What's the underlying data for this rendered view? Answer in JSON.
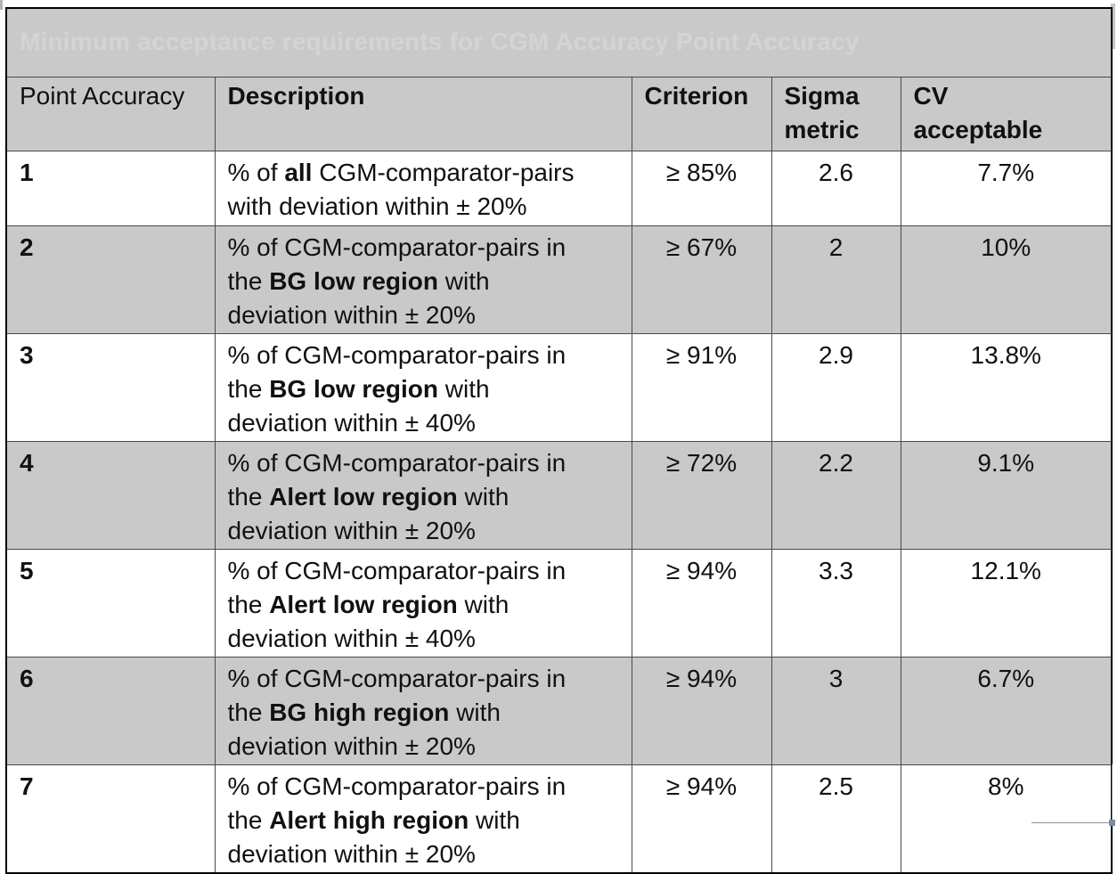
{
  "title": "Minimum acceptance requirements for CGM Accuracy Point Accuracy",
  "table": {
    "columns": [
      {
        "label": "Point Accuracy"
      },
      {
        "label": "Description"
      },
      {
        "label": "Criterion"
      },
      {
        "label": "Sigma\nmetric"
      },
      {
        "label": "CV\nacceptable"
      }
    ],
    "rows": [
      {
        "point": "1",
        "description": [
          {
            "text": "% of ",
            "bold": false
          },
          {
            "text": "all",
            "bold": true
          },
          {
            "text": " CGM-comparator-pairs\nwith deviation within ± 20%",
            "bold": false
          }
        ],
        "criterion": "≥ 85%",
        "sigma": "2.6",
        "cv": "7.7%"
      },
      {
        "point": "2",
        "description": [
          {
            "text": "% of CGM-comparator-pairs in\nthe ",
            "bold": false
          },
          {
            "text": "BG low region",
            "bold": true
          },
          {
            "text": " with\ndeviation within ± 20%",
            "bold": false
          }
        ],
        "criterion": "≥ 67%",
        "sigma": "2",
        "cv": "10%"
      },
      {
        "point": "3",
        "description": [
          {
            "text": "% of CGM-comparator-pairs in\nthe ",
            "bold": false
          },
          {
            "text": "BG low region",
            "bold": true
          },
          {
            "text": " with\ndeviation within ± 40%",
            "bold": false
          }
        ],
        "criterion": "≥ 91%",
        "sigma": "2.9",
        "cv": "13.8%"
      },
      {
        "point": "4",
        "description": [
          {
            "text": "% of CGM-comparator-pairs in\nthe ",
            "bold": false
          },
          {
            "text": "Alert low region",
            "bold": true
          },
          {
            "text": " with\ndeviation within ± 20%",
            "bold": false
          }
        ],
        "criterion": "≥ 72%",
        "sigma": "2.2",
        "cv": "9.1%"
      },
      {
        "point": "5",
        "description": [
          {
            "text": "% of CGM-comparator-pairs in\nthe ",
            "bold": false
          },
          {
            "text": "Alert low region",
            "bold": true
          },
          {
            "text": " with\ndeviation within ± 40%",
            "bold": false
          }
        ],
        "criterion": "≥ 94%",
        "sigma": "3.3",
        "cv": "12.1%"
      },
      {
        "point": "6",
        "description": [
          {
            "text": "% of CGM-comparator-pairs in\nthe ",
            "bold": false
          },
          {
            "text": "BG high region",
            "bold": true
          },
          {
            "text": " with\ndeviation within ± 20%",
            "bold": false
          }
        ],
        "criterion": "≥ 94%",
        "sigma": "3",
        "cv": "6.7%"
      },
      {
        "point": "7",
        "description": [
          {
            "text": "% of CGM-comparator-pairs in\nthe ",
            "bold": false
          },
          {
            "text": "Alert high region",
            "bold": true
          },
          {
            "text": " with\ndeviation within ± 20%",
            "bold": false
          }
        ],
        "criterion": "≥ 94%",
        "sigma": "2.5",
        "cv": "8%"
      }
    ]
  },
  "colors": {
    "title_bg": "#000000",
    "title_text": "#d4d4d4",
    "row_shade": "#c9c9c9",
    "border_inner": "#4a4a4a",
    "border_outer": "#000000"
  }
}
